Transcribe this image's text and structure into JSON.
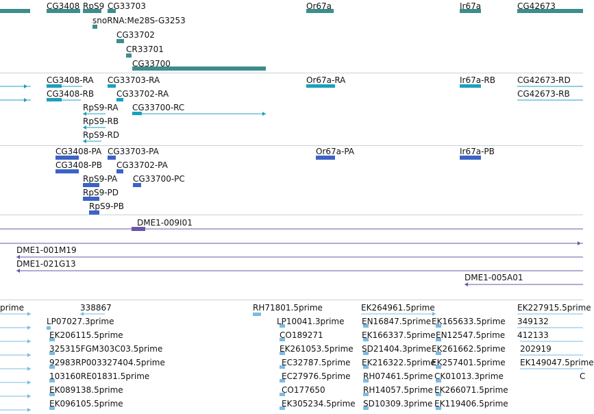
{
  "colors": {
    "gene": "#3e8d8d",
    "transcript_rna": "#1aa0c0",
    "protein": "#3a64c6",
    "clone": "#6a56a8",
    "est": "#7bbbe0",
    "divider": "#c6d2da"
  },
  "tracks": {
    "genes": [
      "CG3408",
      "RpS9",
      "CG33703",
      "snoRNA:Me28S-G3253",
      "CG33702",
      "CR33701",
      "CG33700",
      "Or67a",
      "Ir67a",
      "CG42673"
    ],
    "transcripts": [
      "CG3408-RA",
      "CG33703-RA",
      "CG3408-RB",
      "CG33702-RA",
      "RpS9-RA",
      "CG33700-RC",
      "RpS9-RB",
      "RpS9-RD",
      "Or67a-RA",
      "Ir67a-RB",
      "CG42673-RD",
      "CG42673-RB"
    ],
    "proteins": [
      "CG3408-PA",
      "CG33703-PA",
      "CG3408-PB",
      "CG33702-PA",
      "RpS9-PA",
      "CG33700-PC",
      "RpS9-PD",
      "RpS9-PB",
      "Or67a-PA",
      "Ir67a-PB"
    ],
    "clones": [
      "DME1-009I01",
      "DME1-001M19",
      "DME1-021G13",
      "DME1-005A01"
    ],
    "ests": [
      "prime",
      "338867",
      "LP07027.3prime",
      "EK206115.5prime",
      "325315FGM303C03.5prime",
      "92983RP003327404.5prime",
      "103160RE01831.5prime",
      "EK089138.5prime",
      "EK096105.5prime",
      "RH71801.5prime",
      "LP10041.3prime",
      "CO189271",
      "EK261053.5prime",
      "EC32787.5prime",
      "EC27976.5prime",
      "CO177650",
      "EK305234.5prime",
      "EK264961.5prime",
      "EN16847.5prime",
      "EK166337.5prime",
      "SD21404.3prime",
      "EK216322.5prime",
      "RH07461.5prime",
      "RH14057.5prime",
      "SD10309.3prime",
      "EK165633.5prime",
      "EN12547.5prime",
      "EK261662.5prime",
      "EK257401.5prime",
      "CK01013.3prime",
      "EK266071.5prime",
      "EK119406.5prime",
      "EK227915.5prime",
      "349132",
      "412133",
      "202919",
      "EK149047.5prime",
      "C"
    ]
  }
}
